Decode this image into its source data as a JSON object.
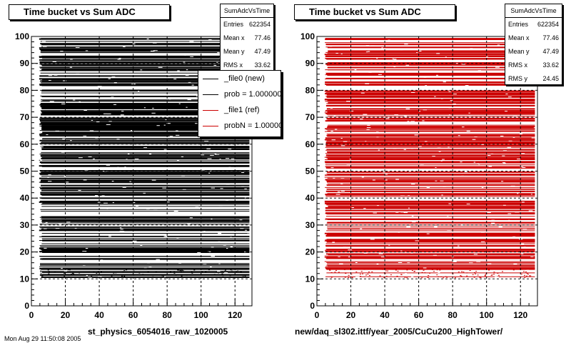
{
  "chart_data": [
    {
      "type": "heatmap",
      "title": "Time bucket vs Sum ADC",
      "xlabel": "st_physics_6054016_raw_1020005",
      "ylabel": "",
      "xlim": [
        0,
        130
      ],
      "ylim": [
        0,
        100
      ],
      "xticks": [
        "0",
        "20",
        "40",
        "60",
        "80",
        "100",
        "120"
      ],
      "yticks": [
        "0",
        "10",
        "20",
        "30",
        "40",
        "50",
        "60",
        "70",
        "80",
        "90",
        "100"
      ],
      "grid": true,
      "color": "#000000",
      "stats": {
        "name": "SumAdcVsTime",
        "rows": [
          {
            "label": "Entries",
            "value": "622354"
          },
          {
            "label": "Mean x",
            "value": "77.46"
          },
          {
            "label": "Mean y",
            "value": "47.49"
          },
          {
            "label": "RMS x",
            "value": "33.62"
          }
        ]
      },
      "legend": {
        "placement": "top-right",
        "entries": [
          {
            "label": "_file0 (new)",
            "color": "#000000"
          },
          {
            "label": "prob = 1.000000",
            "color": "#000000"
          },
          {
            "label": "_file1 (ref)",
            "color": "#cc0000"
          },
          {
            "label": "probN = 1.000000",
            "color": "#cc0000"
          }
        ]
      }
    },
    {
      "type": "heatmap",
      "title": "Time bucket vs Sum ADC",
      "xlabel": "new/daq_sl302.ittf/year_2005/CuCu200_HighTower/",
      "ylabel": "",
      "xlim": [
        0,
        130
      ],
      "ylim": [
        0,
        100
      ],
      "xticks": [
        "0",
        "20",
        "40",
        "60",
        "80",
        "100",
        "120"
      ],
      "yticks": [
        "0",
        "10",
        "20",
        "30",
        "40",
        "50",
        "60",
        "70",
        "80",
        "90",
        "100"
      ],
      "grid": true,
      "color": "#cc0000",
      "stats": {
        "name": "SumAdcVsTime",
        "rows": [
          {
            "label": "Entries",
            "value": "622354"
          },
          {
            "label": "Mean x",
            "value": "77.46"
          },
          {
            "label": "Mean y",
            "value": "47.49"
          },
          {
            "label": "RMS x",
            "value": "33.62"
          },
          {
            "label": "RMS y",
            "value": "24.45"
          }
        ]
      }
    }
  ],
  "footer": "Mon Aug 29 11:50:08 2005"
}
